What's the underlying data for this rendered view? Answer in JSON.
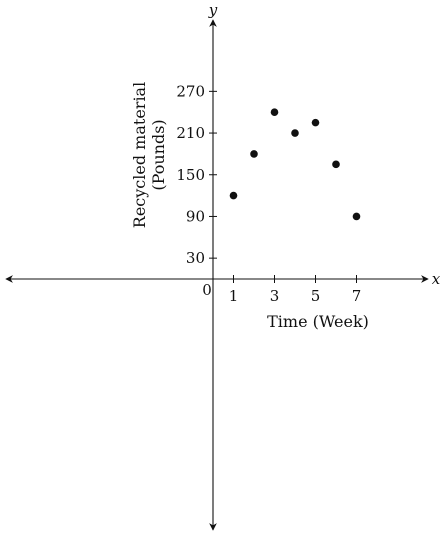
{
  "chart_data": {
    "type": "scatter",
    "title": "",
    "xlabel": "Time (Week)",
    "ylabel_lines": [
      "Recycled material",
      "(Pounds)"
    ],
    "x_axis_name": "x",
    "y_axis_name": "y",
    "origin_label": "0",
    "x_ticks": [
      1,
      3,
      5,
      7
    ],
    "x_tick_labels": [
      "1",
      "3",
      "5",
      "7"
    ],
    "y_ticks": [
      30,
      90,
      150,
      210,
      270
    ],
    "y_tick_labels": [
      "30",
      "90",
      "150",
      "210",
      "270"
    ],
    "points": [
      {
        "x": 1,
        "y": 120
      },
      {
        "x": 2,
        "y": 180
      },
      {
        "x": 3,
        "y": 240
      },
      {
        "x": 4,
        "y": 210
      },
      {
        "x": 5,
        "y": 225
      },
      {
        "x": 6,
        "y": 165
      },
      {
        "x": 7,
        "y": 90
      }
    ],
    "colors": {
      "axis": "#111111",
      "point": "#111111"
    },
    "grid": false
  }
}
